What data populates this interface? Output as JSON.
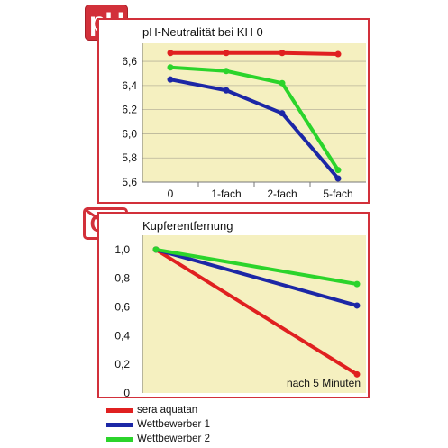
{
  "chart_data": [
    {
      "type": "line",
      "title": "pH-Neutralität bei KH 0",
      "categories": [
        "0",
        "1-fach",
        "2-fach",
        "5-fach"
      ],
      "yticks": [
        "5,6",
        "5,8",
        "6,0",
        "6,2",
        "6,4",
        "6,6"
      ],
      "ylim": [
        5.6,
        6.75
      ],
      "grid": true,
      "series": [
        {
          "name": "sera aquatan",
          "color": "#e02020",
          "values": [
            6.67,
            6.67,
            6.67,
            6.66
          ]
        },
        {
          "name": "Wettbewerber 1",
          "color": "#1c27a6",
          "values": [
            6.45,
            6.36,
            6.17,
            5.63
          ]
        },
        {
          "name": "Wettbewerber 2",
          "color": "#2bd42b",
          "values": [
            6.55,
            6.52,
            6.42,
            5.7
          ]
        }
      ]
    },
    {
      "type": "line",
      "title": "Kupferentfernung",
      "xlabel": "nach 5 Minuten",
      "yticks": [
        "0",
        "0,2",
        "0,4",
        "0,6",
        "0,8",
        "1,0"
      ],
      "ylim": [
        0,
        1.1
      ],
      "grid": false,
      "series": [
        {
          "name": "sera aquatan",
          "color": "#e02020",
          "values": [
            1.0,
            0.13
          ]
        },
        {
          "name": "Wettbewerber 1",
          "color": "#1c27a6",
          "values": [
            1.0,
            0.61
          ]
        },
        {
          "name": "Wettbewerber 2",
          "color": "#2bd42b",
          "values": [
            1.0,
            0.76
          ]
        }
      ]
    }
  ],
  "badges": {
    "ph": "pH",
    "cu": "Cu"
  },
  "legend": [
    {
      "label": "sera aquatan",
      "color": "#e02020"
    },
    {
      "label": "Wettbewerber 1",
      "color": "#1c27a6"
    },
    {
      "label": "Wettbewerber 2",
      "color": "#2bd42b"
    }
  ]
}
